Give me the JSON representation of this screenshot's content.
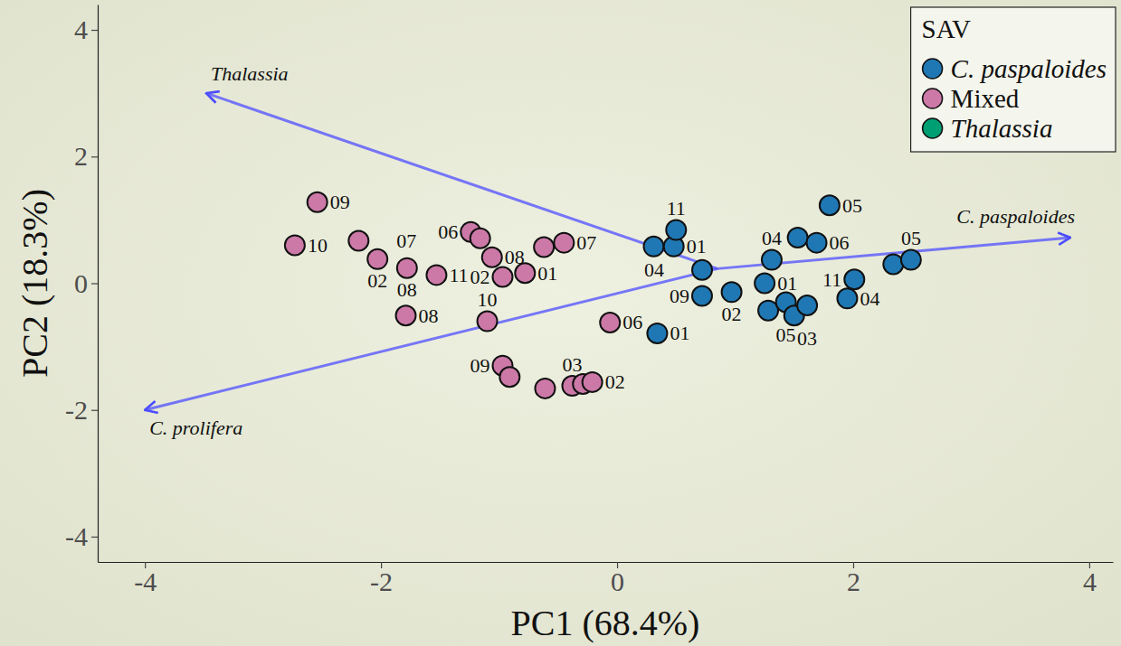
{
  "chart_data": {
    "type": "scatter",
    "x_label": "PC1 (68.4%)",
    "y_label": "PC2 (18.3%)",
    "xlim": [
      -4.4,
      4.2
    ],
    "ylim": [
      -4.4,
      4.4
    ],
    "xticks": [
      -4,
      -2,
      0,
      2,
      4
    ],
    "yticks": [
      -4,
      -2,
      0,
      2,
      4
    ],
    "grid": false,
    "legend": "top-right",
    "legend_title": "SAV",
    "marker": "circle",
    "series": [
      {
        "name": "C. paspaloides",
        "color": "#1f78b4",
        "x": [
          0.31,
          0.48,
          0.5,
          0.72,
          0.72,
          0.97,
          1.25,
          1.28,
          1.43,
          1.5,
          1.61,
          1.31,
          1.53,
          1.69,
          1.8,
          1.95,
          2.01,
          2.34,
          2.49,
          0.34
        ],
        "values": [
          0.58,
          0.58,
          0.84,
          0.21,
          -0.2,
          -0.14,
          0.0,
          -0.43,
          -0.3,
          -0.51,
          -0.35,
          0.37,
          0.72,
          0.64,
          1.23,
          -0.24,
          0.06,
          0.3,
          0.37,
          -0.79
        ],
        "labels": [
          null,
          "01",
          "11",
          "04",
          "09",
          "02",
          "01",
          null,
          "05",
          null,
          "03",
          "04",
          null,
          "06",
          "05",
          "04",
          "11",
          null,
          "05",
          "01"
        ]
      },
      {
        "name": "Mixed",
        "color": "#cc79a7",
        "x": [
          -2.54,
          -2.73,
          -2.19,
          -2.03,
          -1.78,
          -1.53,
          -1.24,
          -1.16,
          -1.06,
          -0.97,
          -0.78,
          -0.62,
          -0.45,
          -1.79,
          -1.1,
          -0.06,
          -0.97,
          -0.91,
          -0.61,
          -0.38,
          -0.29,
          -0.21
        ],
        "values": [
          1.28,
          0.6,
          0.67,
          0.38,
          0.24,
          0.13,
          0.81,
          0.71,
          0.41,
          0.1,
          0.16,
          0.57,
          0.64,
          -0.51,
          -0.6,
          -0.62,
          -1.3,
          -1.48,
          -1.66,
          -1.62,
          -1.59,
          -1.56
        ],
        "labels": [
          "09",
          "10",
          "07",
          "02",
          "08",
          "11",
          "06",
          null,
          "08",
          "02",
          "01",
          null,
          "07",
          "08",
          "10",
          "06",
          "09",
          null,
          null,
          "03",
          null,
          "02"
        ]
      },
      {
        "name": "Thalassia",
        "color": "#009e73",
        "x": [],
        "values": [],
        "labels": []
      }
    ],
    "arrows": {
      "color": "#4d4dff",
      "items": [
        {
          "label": "Thalassia",
          "x0": 0.85,
          "y0": 0.23,
          "x": -3.48,
          "y": 3.0
        },
        {
          "label": "C. paspaloides",
          "x0": 0.85,
          "y0": 0.23,
          "x": 3.84,
          "y": 0.72
        },
        {
          "label": "C. prolifera",
          "x0": 0.85,
          "y0": 0.23,
          "x": -4.0,
          "y": -2.0
        }
      ]
    }
  }
}
